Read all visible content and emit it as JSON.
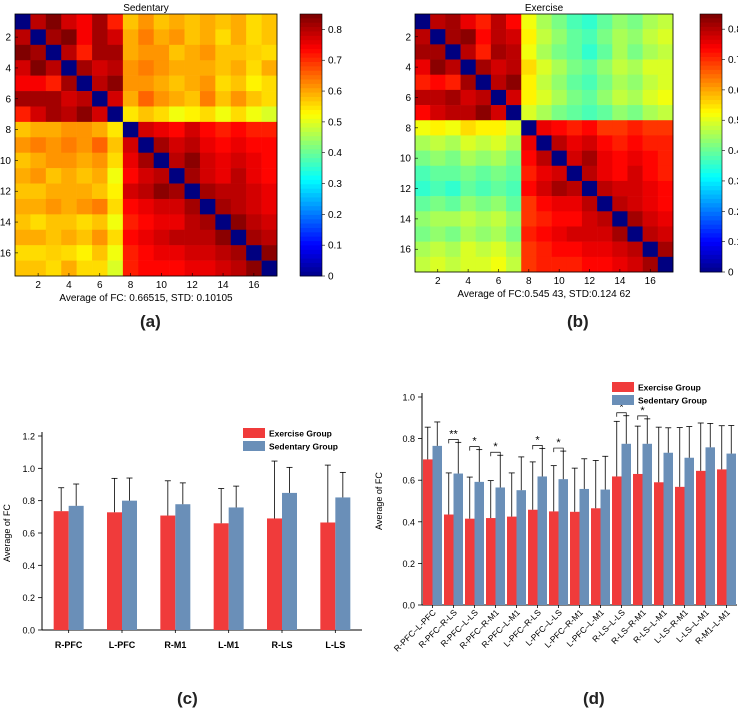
{
  "panels": {
    "a": "(a)",
    "b": "(b)",
    "c": "(c)",
    "d": "(d)"
  },
  "colors": {
    "exercise": "#f03b3b",
    "sedentary": "#6a8fb8"
  },
  "chart_data": [
    {
      "type": "heatmap",
      "title": "Sedentary",
      "xlabel": "Average of FC: 0.66515, STD: 0.10105",
      "x_ticks": [
        "2",
        "4",
        "6",
        "8",
        "10",
        "12",
        "14",
        "16"
      ],
      "y_ticks": [
        "2",
        "4",
        "6",
        "8",
        "10",
        "12",
        "14",
        "16"
      ],
      "colorbar_ticks": [
        "0",
        "0.1",
        "0.2",
        "0.3",
        "0.4",
        "0.5",
        "0.6",
        "0.7",
        "0.8"
      ],
      "colorbar_range": [
        0,
        0.85
      ],
      "size": 17,
      "block_split": 7,
      "values": [
        [
          0,
          0.8,
          0.85,
          0.78,
          0.75,
          0.82,
          0.72,
          0.58,
          0.62,
          0.58,
          0.6,
          0.58,
          0.6,
          0.58,
          0.6,
          0.56,
          0.58
        ],
        [
          0.8,
          0,
          0.82,
          0.85,
          0.75,
          0.82,
          0.78,
          0.6,
          0.64,
          0.6,
          0.62,
          0.58,
          0.6,
          0.56,
          0.6,
          0.56,
          0.58
        ],
        [
          0.85,
          0.82,
          0,
          0.8,
          0.72,
          0.82,
          0.82,
          0.6,
          0.62,
          0.62,
          0.58,
          0.6,
          0.62,
          0.58,
          0.58,
          0.57,
          0.56
        ],
        [
          0.78,
          0.85,
          0.8,
          0,
          0.82,
          0.78,
          0.8,
          0.62,
          0.64,
          0.62,
          0.6,
          0.6,
          0.6,
          0.58,
          0.6,
          0.56,
          0.6
        ],
        [
          0.75,
          0.75,
          0.72,
          0.82,
          0,
          0.8,
          0.84,
          0.62,
          0.62,
          0.6,
          0.58,
          0.6,
          0.62,
          0.56,
          0.58,
          0.54,
          0.56
        ],
        [
          0.82,
          0.82,
          0.82,
          0.78,
          0.8,
          0,
          0.78,
          0.6,
          0.66,
          0.62,
          0.6,
          0.58,
          0.64,
          0.58,
          0.62,
          0.58,
          0.56
        ],
        [
          0.72,
          0.78,
          0.82,
          0.8,
          0.84,
          0.78,
          0,
          0.55,
          0.58,
          0.56,
          0.52,
          0.54,
          0.56,
          0.52,
          0.56,
          0.52,
          0.5
        ],
        [
          0.58,
          0.6,
          0.6,
          0.62,
          0.62,
          0.6,
          0.55,
          0,
          0.78,
          0.76,
          0.74,
          0.78,
          0.74,
          0.72,
          0.74,
          0.72,
          0.72
        ],
        [
          0.62,
          0.64,
          0.62,
          0.64,
          0.62,
          0.66,
          0.58,
          0.78,
          0,
          0.82,
          0.78,
          0.8,
          0.76,
          0.74,
          0.76,
          0.74,
          0.74
        ],
        [
          0.58,
          0.6,
          0.62,
          0.62,
          0.6,
          0.62,
          0.56,
          0.76,
          0.82,
          0,
          0.8,
          0.84,
          0.78,
          0.76,
          0.78,
          0.76,
          0.74
        ],
        [
          0.6,
          0.62,
          0.58,
          0.6,
          0.58,
          0.6,
          0.52,
          0.74,
          0.78,
          0.8,
          0,
          0.82,
          0.78,
          0.76,
          0.8,
          0.76,
          0.74
        ],
        [
          0.58,
          0.58,
          0.6,
          0.6,
          0.6,
          0.58,
          0.54,
          0.78,
          0.8,
          0.84,
          0.82,
          0,
          0.82,
          0.8,
          0.8,
          0.78,
          0.76
        ],
        [
          0.6,
          0.6,
          0.62,
          0.6,
          0.62,
          0.64,
          0.56,
          0.74,
          0.76,
          0.78,
          0.78,
          0.82,
          0,
          0.82,
          0.8,
          0.78,
          0.76
        ],
        [
          0.58,
          0.56,
          0.58,
          0.58,
          0.56,
          0.58,
          0.52,
          0.72,
          0.74,
          0.76,
          0.76,
          0.8,
          0.82,
          0,
          0.84,
          0.8,
          0.78
        ],
        [
          0.6,
          0.6,
          0.58,
          0.6,
          0.58,
          0.62,
          0.56,
          0.74,
          0.76,
          0.78,
          0.8,
          0.8,
          0.8,
          0.84,
          0,
          0.82,
          0.8
        ],
        [
          0.56,
          0.56,
          0.57,
          0.56,
          0.54,
          0.58,
          0.52,
          0.72,
          0.74,
          0.76,
          0.76,
          0.78,
          0.78,
          0.8,
          0.82,
          0,
          0.84
        ],
        [
          0.58,
          0.58,
          0.56,
          0.6,
          0.56,
          0.56,
          0.5,
          0.72,
          0.74,
          0.74,
          0.74,
          0.76,
          0.76,
          0.78,
          0.8,
          0.84,
          0
        ]
      ]
    },
    {
      "type": "heatmap",
      "title": "Exercise",
      "xlabel": "Average of FC:0.545 43, STD:0.124 62",
      "x_ticks": [
        "2",
        "4",
        "6",
        "8",
        "10",
        "12",
        "14",
        "16"
      ],
      "y_ticks": [
        "2",
        "4",
        "6",
        "8",
        "10",
        "12",
        "14",
        "16"
      ],
      "colorbar_ticks": [
        "0",
        "0.1",
        "0.2",
        "0.3",
        "0.4",
        "0.5",
        "0.6",
        "0.7",
        "0.8"
      ],
      "colorbar_range": [
        0,
        0.85
      ],
      "size": 17,
      "block_split": 7,
      "values": [
        [
          0,
          0.8,
          0.82,
          0.76,
          0.72,
          0.8,
          0.74,
          0.52,
          0.46,
          0.42,
          0.38,
          0.36,
          0.4,
          0.44,
          0.42,
          0.46,
          0.48
        ],
        [
          0.8,
          0,
          0.82,
          0.84,
          0.74,
          0.8,
          0.78,
          0.54,
          0.48,
          0.44,
          0.4,
          0.38,
          0.42,
          0.46,
          0.44,
          0.48,
          0.5
        ],
        [
          0.82,
          0.82,
          0,
          0.8,
          0.72,
          0.82,
          0.8,
          0.52,
          0.46,
          0.42,
          0.4,
          0.36,
          0.4,
          0.46,
          0.42,
          0.46,
          0.48
        ],
        [
          0.76,
          0.84,
          0.8,
          0,
          0.82,
          0.78,
          0.8,
          0.56,
          0.5,
          0.46,
          0.42,
          0.4,
          0.44,
          0.48,
          0.46,
          0.5,
          0.5
        ],
        [
          0.72,
          0.74,
          0.72,
          0.82,
          0,
          0.8,
          0.84,
          0.54,
          0.48,
          0.44,
          0.4,
          0.38,
          0.42,
          0.46,
          0.44,
          0.48,
          0.5
        ],
        [
          0.8,
          0.8,
          0.82,
          0.78,
          0.8,
          0,
          0.78,
          0.54,
          0.5,
          0.46,
          0.42,
          0.4,
          0.44,
          0.48,
          0.46,
          0.5,
          0.52
        ],
        [
          0.74,
          0.78,
          0.8,
          0.8,
          0.84,
          0.78,
          0,
          0.5,
          0.46,
          0.42,
          0.4,
          0.38,
          0.4,
          0.44,
          0.42,
          0.46,
          0.48
        ],
        [
          0.52,
          0.54,
          0.52,
          0.56,
          0.54,
          0.54,
          0.5,
          0,
          0.76,
          0.74,
          0.72,
          0.74,
          0.7,
          0.7,
          0.72,
          0.7,
          0.7
        ],
        [
          0.46,
          0.48,
          0.46,
          0.5,
          0.48,
          0.5,
          0.46,
          0.76,
          0,
          0.8,
          0.76,
          0.78,
          0.74,
          0.72,
          0.74,
          0.72,
          0.72
        ],
        [
          0.42,
          0.44,
          0.42,
          0.46,
          0.44,
          0.46,
          0.42,
          0.74,
          0.8,
          0,
          0.78,
          0.82,
          0.76,
          0.74,
          0.76,
          0.74,
          0.72
        ],
        [
          0.38,
          0.4,
          0.4,
          0.42,
          0.4,
          0.42,
          0.4,
          0.72,
          0.76,
          0.78,
          0,
          0.8,
          0.76,
          0.74,
          0.78,
          0.74,
          0.72
        ],
        [
          0.36,
          0.38,
          0.36,
          0.4,
          0.38,
          0.4,
          0.38,
          0.74,
          0.78,
          0.82,
          0.8,
          0,
          0.8,
          0.78,
          0.78,
          0.76,
          0.74
        ],
        [
          0.4,
          0.42,
          0.4,
          0.44,
          0.42,
          0.44,
          0.4,
          0.7,
          0.74,
          0.76,
          0.76,
          0.8,
          0,
          0.8,
          0.78,
          0.76,
          0.74
        ],
        [
          0.44,
          0.46,
          0.46,
          0.48,
          0.46,
          0.48,
          0.44,
          0.7,
          0.72,
          0.74,
          0.74,
          0.78,
          0.8,
          0,
          0.82,
          0.78,
          0.76
        ],
        [
          0.42,
          0.44,
          0.42,
          0.46,
          0.44,
          0.46,
          0.42,
          0.72,
          0.74,
          0.76,
          0.78,
          0.78,
          0.78,
          0.82,
          0,
          0.8,
          0.78
        ],
        [
          0.46,
          0.48,
          0.46,
          0.5,
          0.48,
          0.5,
          0.46,
          0.7,
          0.72,
          0.74,
          0.74,
          0.76,
          0.76,
          0.78,
          0.8,
          0,
          0.82
        ],
        [
          0.48,
          0.5,
          0.48,
          0.5,
          0.5,
          0.52,
          0.48,
          0.7,
          0.72,
          0.72,
          0.72,
          0.74,
          0.74,
          0.76,
          0.78,
          0.82,
          0
        ]
      ]
    },
    {
      "type": "bar",
      "categories": [
        "R-PFC",
        "L-PFC",
        "R-M1",
        "L-M1",
        "R-LS",
        "L-LS"
      ],
      "series": [
        {
          "name": "Exercise Group",
          "values": [
            0.735,
            0.728,
            0.708,
            0.66,
            0.69,
            0.665
          ],
          "errors": [
            0.145,
            0.21,
            0.215,
            0.215,
            0.355,
            0.355
          ]
        },
        {
          "name": "Sedentary Group",
          "values": [
            0.768,
            0.8,
            0.778,
            0.758,
            0.848,
            0.82
          ],
          "errors": [
            0.135,
            0.14,
            0.132,
            0.132,
            0.158,
            0.155
          ]
        }
      ],
      "ylabel": "Average of FC",
      "ylim": [
        0,
        1.2
      ],
      "y_ticks": [
        "0.0",
        "0.2",
        "0.4",
        "0.6",
        "0.8",
        "1.0",
        "1.2"
      ],
      "legend": "top-right"
    },
    {
      "type": "bar",
      "categories": [
        "R-PFC–L-PFC",
        "R-PFC–R-LS",
        "R-PFC–L-LS",
        "R-PFC–R-M1",
        "R-PFC–L-M1",
        "L-PFC–R-LS",
        "L-PFC–L-LS",
        "L-PFC–R-M1",
        "L-PFC–L-M1",
        "R-LS–L-LS",
        "R-LS–R-M1",
        "R-LS–L-M1",
        "L-LS–R-M1",
        "L-LS–L-M1",
        "R-M1–L-M1"
      ],
      "series": [
        {
          "name": "Exercise Group",
          "values": [
            0.7,
            0.435,
            0.415,
            0.418,
            0.425,
            0.458,
            0.45,
            0.448,
            0.465,
            0.618,
            0.63,
            0.59,
            0.568,
            0.645,
            0.652
          ],
          "errors": [
            0.155,
            0.2,
            0.2,
            0.18,
            0.21,
            0.23,
            0.22,
            0.21,
            0.23,
            0.265,
            0.23,
            0.265,
            0.285,
            0.23,
            0.21
          ]
        },
        {
          "name": "Sedentary Group",
          "values": [
            0.765,
            0.632,
            0.592,
            0.565,
            0.552,
            0.618,
            0.605,
            0.558,
            0.555,
            0.775,
            0.775,
            0.732,
            0.708,
            0.758,
            0.728
          ],
          "errors": [
            0.115,
            0.15,
            0.155,
            0.155,
            0.16,
            0.135,
            0.135,
            0.145,
            0.16,
            0.135,
            0.12,
            0.12,
            0.15,
            0.115,
            0.135
          ]
        }
      ],
      "significance": [
        {
          "index": 1,
          "label": "**"
        },
        {
          "index": 2,
          "label": "*"
        },
        {
          "index": 3,
          "label": "*"
        },
        {
          "index": 5,
          "label": "*"
        },
        {
          "index": 6,
          "label": "*"
        },
        {
          "index": 9,
          "label": "*"
        },
        {
          "index": 10,
          "label": "*"
        }
      ],
      "ylabel": "Average of FC",
      "ylim": [
        0,
        1.0
      ],
      "y_ticks": [
        "0.0",
        "0.2",
        "0.4",
        "0.6",
        "0.8",
        "1.0"
      ],
      "legend": "top-right"
    }
  ]
}
